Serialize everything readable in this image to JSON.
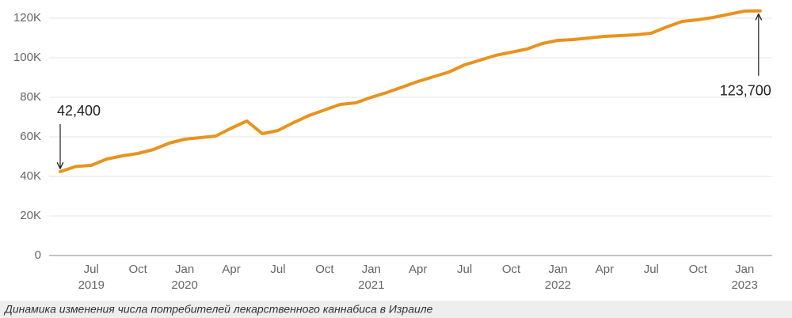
{
  "chart_data": {
    "type": "line",
    "caption": "Динамика изменения числа потребителей лекарственного каннабиса в Израиле",
    "categories": [
      null,
      null,
      "Jul",
      null,
      null,
      "Oct",
      null,
      null,
      "Jan",
      null,
      null,
      "Apr",
      null,
      null,
      "Jul",
      null,
      null,
      "Oct",
      null,
      null,
      "Jan",
      null,
      null,
      "Apr",
      null,
      null,
      "Jul",
      null,
      null,
      "Oct",
      null,
      null,
      "Jan",
      null,
      null,
      "Apr",
      null,
      null,
      "Jul",
      null,
      null,
      "Oct",
      null,
      null,
      "Jan",
      null
    ],
    "category_years": [
      null,
      null,
      "2019",
      null,
      null,
      null,
      null,
      null,
      "2020",
      null,
      null,
      null,
      null,
      null,
      null,
      null,
      null,
      null,
      null,
      null,
      "2021",
      null,
      null,
      null,
      null,
      null,
      null,
      null,
      null,
      null,
      null,
      null,
      "2022",
      null,
      null,
      null,
      null,
      null,
      null,
      null,
      null,
      null,
      null,
      null,
      "2023",
      null
    ],
    "series": [
      {
        "color": "#e8931e",
        "values": [
          42400,
          45000,
          45600,
          48800,
          50400,
          51600,
          53600,
          56800,
          58800,
          59600,
          60400,
          64400,
          68000,
          61600,
          63200,
          67200,
          70800,
          73600,
          76400,
          77200,
          80000,
          82400,
          85200,
          88000,
          90400,
          92800,
          96400,
          98800,
          101200,
          102800,
          104400,
          107200,
          108800,
          109200,
          110000,
          110800,
          111200,
          111600,
          112400,
          115600,
          118400,
          119200,
          120400,
          122000,
          123600,
          123700
        ],
        "value_labels": [
          "42,400",
          null,
          null,
          null,
          null,
          null,
          null,
          null,
          null,
          null,
          null,
          null,
          null,
          null,
          null,
          null,
          null,
          null,
          null,
          null,
          null,
          null,
          null,
          null,
          null,
          null,
          null,
          null,
          null,
          null,
          null,
          null,
          null,
          null,
          null,
          null,
          null,
          null,
          null,
          null,
          null,
          null,
          null,
          null,
          null,
          "123,700"
        ]
      }
    ],
    "ylim": [
      0,
      120000
    ],
    "yticks": [
      0,
      {
        "value": 20000,
        "label": "20K"
      },
      {
        "value": 40000,
        "label": "40K"
      },
      {
        "value": 60000,
        "label": "60K"
      },
      {
        "value": 80000,
        "label": "80K"
      },
      {
        "value": 100000,
        "label": "100K"
      },
      {
        "value": 120000,
        "label": "120K"
      }
    ],
    "grid": true
  }
}
